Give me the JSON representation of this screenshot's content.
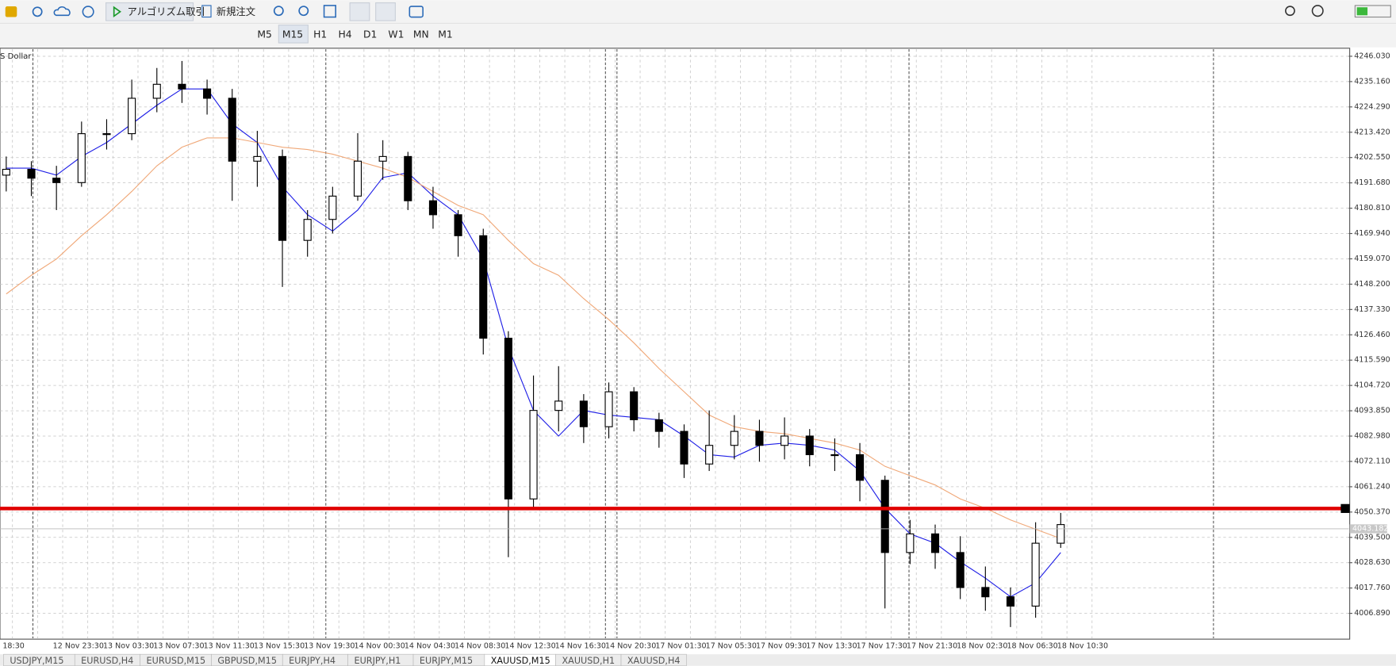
{
  "toolbar": {
    "algo": "アルゴリズム取引",
    "new_order": "新規注文",
    "timeframes": [
      "M5",
      "M15",
      "H1",
      "H4",
      "D1",
      "W1",
      "MN",
      "M1"
    ],
    "active": "M15"
  },
  "chart_data": {
    "type": "candlestick",
    "label": "S Dollar",
    "x_labels": [
      "18:30",
      "12 Nov 23:30",
      "13 Nov 03:30",
      "13 Nov 07:30",
      "13 Nov 11:30",
      "13 Nov 15:30",
      "13 Nov 19:30",
      "14 Nov 00:30",
      "14 Nov 04:30",
      "14 Nov 08:30",
      "14 Nov 12:30",
      "14 Nov 16:30",
      "14 Nov 20:30",
      "17 Nov 01:30",
      "17 Nov 05:30",
      "17 Nov 09:30",
      "17 Nov 13:30",
      "17 Nov 17:30",
      "17 Nov 21:30",
      "18 Nov 02:30",
      "18 Nov 06:30",
      "18 Nov 10:30"
    ],
    "open": [
      4195,
      4197.5,
      4193.7,
      4191.8,
      4212.8,
      4212.8,
      4228,
      4234,
      4232,
      4228,
      4201,
      4203,
      4167,
      4176,
      4186,
      4201,
      4203,
      4184,
      4178,
      4169,
      4125,
      4056,
      4094,
      4098,
      4087,
      4102,
      4090,
      4085,
      4071,
      4079,
      4085,
      4079,
      4083,
      4075,
      4075,
      4064,
      4033,
      4041,
      4033,
      4018,
      4014,
      4010,
      4037
    ],
    "high": [
      4203,
      4201,
      4199,
      4218,
      4219,
      4236,
      4241,
      4244,
      4236,
      4232,
      4214,
      4206,
      4180,
      4190,
      4213,
      4210,
      4205,
      4190,
      4180,
      4172,
      4128,
      4109,
      4113,
      4101,
      4106,
      4104,
      4093,
      4088,
      4094,
      4092,
      4090,
      4091,
      4086,
      4082,
      4080,
      4066,
      4047,
      4045,
      4040,
      4027,
      4018,
      4046,
      4050
    ],
    "low": [
      4188,
      4186,
      4180,
      4190,
      4206,
      4210,
      4222,
      4226,
      4221,
      4184,
      4190,
      4147,
      4160,
      4170,
      4184,
      4193,
      4180,
      4172,
      4160,
      4118,
      4031,
      4052,
      4085,
      4080,
      4082,
      4085,
      4078,
      4065,
      4068,
      4073,
      4072,
      4073,
      4070,
      4068,
      4055,
      4009,
      4028,
      4026,
      4013,
      4008,
      4001,
      4005,
      4035
    ],
    "close": [
      4197.5,
      4193.7,
      4191.8,
      4212.8,
      4212.8,
      4228,
      4234,
      4232,
      4228,
      4201,
      4203,
      4167,
      4176,
      4186,
      4201,
      4203,
      4184,
      4178,
      4169,
      4125,
      4056,
      4094,
      4098,
      4087,
      4102,
      4090,
      4085,
      4071,
      4079,
      4085,
      4079,
      4083,
      4075,
      4075,
      4064,
      4033,
      4041,
      4033,
      4018,
      4014,
      4010,
      4037,
      4045
    ],
    "ma_lines": [
      {
        "color": "#1f1fe6",
        "values": [
          4198,
          4198,
          4195,
          4203,
          4209,
          4217,
          4225,
          4232,
          4232,
          4217,
          4209,
          4190,
          4178,
          4171,
          4180,
          4194,
          4196,
          4186,
          4178,
          4159,
          4121,
          4094,
          4083,
          4094,
          4092,
          4091,
          4090,
          4083,
          4075,
          4074,
          4079,
          4080,
          4079,
          4077,
          4068,
          4052,
          4041,
          4037,
          4029,
          4022,
          4014,
          4020,
          4033
        ]
      },
      {
        "color": "#f0a878",
        "values": [
          4144,
          4152,
          4159,
          4169,
          4178,
          4188,
          4199,
          4207,
          4211,
          4211,
          4209,
          4207,
          4206,
          4204,
          4201,
          4198,
          4194,
          4188,
          4182,
          4178,
          4167,
          4157,
          4152,
          4142,
          4133,
          4123,
          4112,
          4102,
          4092,
          4087,
          4085,
          4084,
          4082,
          4080,
          4077,
          4070,
          4066,
          4062,
          4056,
          4052,
          4047,
          4043,
          4039
        ]
      }
    ],
    "hline": {
      "value": 4051.9,
      "color": "#e00000"
    },
    "last_price": 4043.182,
    "ylim": [
      3996.2,
      4249.1
    ],
    "yticks": [
      {
        "value": 4246.03,
        "label": "4246.030"
      },
      {
        "value": 4235.16,
        "label": "4235.160"
      },
      {
        "value": 4224.29,
        "label": "4224.290"
      },
      {
        "value": 4213.42,
        "label": "4213.420"
      },
      {
        "value": 4202.55,
        "label": "4202.550"
      },
      {
        "value": 4191.68,
        "label": "4191.680"
      },
      {
        "value": 4180.81,
        "label": "4180.810"
      },
      {
        "value": 4169.94,
        "label": "4169.940"
      },
      {
        "value": 4159.07,
        "label": "4159.070"
      },
      {
        "value": 4148.2,
        "label": "4148.200"
      },
      {
        "value": 4137.33,
        "label": "4137.330"
      },
      {
        "value": 4126.46,
        "label": "4126.460"
      },
      {
        "value": 4115.59,
        "label": "4115.590"
      },
      {
        "value": 4104.72,
        "label": "4104.720"
      },
      {
        "value": 4093.85,
        "label": "4093.850"
      },
      {
        "value": 4082.98,
        "label": "4082.980"
      },
      {
        "value": 4072.11,
        "label": "4072.110"
      },
      {
        "value": 4061.24,
        "label": "4061.240"
      },
      {
        "value": 4050.37,
        "label": "4050.370"
      },
      {
        "value": 4039.5,
        "label": "4039.500"
      },
      {
        "value": 4028.63,
        "label": "4028.630"
      },
      {
        "value": 4017.76,
        "label": "4017.760"
      },
      {
        "value": 4006.89,
        "label": "4006.890"
      }
    ],
    "grid": true
  },
  "tabs": [
    "USDJPY,M15",
    "EURUSD,H4",
    "EURUSD,M15",
    "GBPUSD,M15",
    "EURJPY,H4",
    "EURJPY,H1",
    "EURJPY,M15",
    "XAUUSD,M15",
    "XAUUSD,H1",
    "XAUUSD,H4"
  ],
  "active_tab": 7
}
